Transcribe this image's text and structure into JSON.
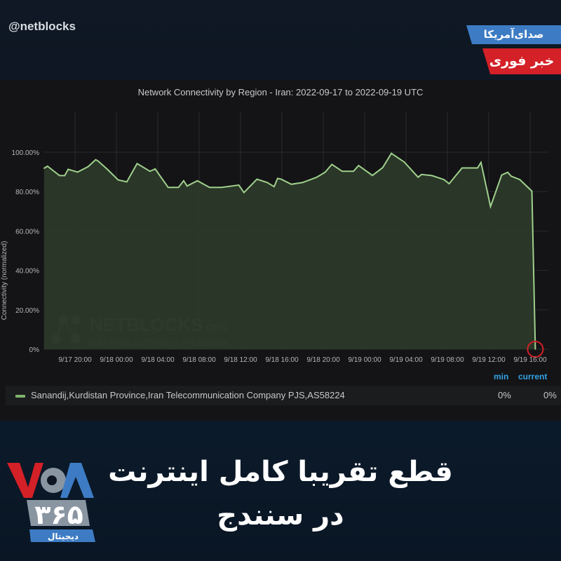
{
  "header": {
    "handle": "@netblocks",
    "badge_voa": "صدای‌آمریکا",
    "badge_breaking": "خبر فوری"
  },
  "headline": {
    "line1": "قطع تقریبا کامل اینترنت",
    "line2": "در سنندج"
  },
  "logo": {
    "text": "VOA ۳۶۵ دیجیتال"
  },
  "watermark": {
    "text": "NETBLOCKS.ORG MAPPING INTERNET FREEDOM"
  },
  "legend": {
    "min_label": "min",
    "current_label": "current",
    "series_name": "Sanandij,Kurdistan Province,Iran Telecommunication Company PJS,AS58224",
    "min_value": "0%",
    "current_value": "0%"
  },
  "colors": {
    "series": "#7eb26d",
    "fill": "#2c3a2a",
    "marker": "#d42027",
    "legend_header": "#33a2e5"
  },
  "chart_data": {
    "type": "area",
    "title": "Network Connectivity by Region - Iran: 2022-09-17 to 2022-09-19 UTC",
    "ylabel": "Connectivity (normalized)",
    "xlabel": "",
    "ylim": [
      0,
      100
    ],
    "yticks": [
      "0%",
      "20.00%",
      "40.00%",
      "60.00%",
      "80.00%",
      "100.00%"
    ],
    "xticks": [
      "9/17 20:00",
      "9/18 00:00",
      "9/18 04:00",
      "9/18 08:00",
      "9/18 12:00",
      "9/18 16:00",
      "9/18 20:00",
      "9/19 00:00",
      "9/19 04:00",
      "9/19 08:00",
      "9/19 12:00",
      "9/19 16:00"
    ],
    "grid": true,
    "legend_placement": "bottom",
    "series": [
      {
        "name": "Sanandij,Kurdistan Province,Iran Telecommunication Company PJS,AS58224",
        "points": [
          [
            "2022-09-17 17:00",
            91.8
          ],
          [
            "2022-09-17 17:20",
            92.9
          ],
          [
            "2022-09-17 18:30",
            88.1
          ],
          [
            "2022-09-17 19:00",
            88.1
          ],
          [
            "2022-09-17 19:20",
            91.3
          ],
          [
            "2022-09-17 20:15",
            89.9
          ],
          [
            "2022-09-17 21:15",
            92.6
          ],
          [
            "2022-09-17 22:00",
            96.2
          ],
          [
            "2022-09-17 22:15",
            95.4
          ],
          [
            "2022-09-17 23:10",
            91.1
          ],
          [
            "2022-09-18 00:10",
            85.9
          ],
          [
            "2022-09-18 01:00",
            84.9
          ],
          [
            "2022-09-18 02:00",
            94.2
          ],
          [
            "2022-09-18 03:15",
            90.3
          ],
          [
            "2022-09-18 03:45",
            91.5
          ],
          [
            "2022-09-18 05:00",
            82.1
          ],
          [
            "2022-09-18 06:00",
            82.1
          ],
          [
            "2022-09-18 06:30",
            85.5
          ],
          [
            "2022-09-18 06:50",
            82.8
          ],
          [
            "2022-09-18 07:50",
            85.5
          ],
          [
            "2022-09-18 09:00",
            82.1
          ],
          [
            "2022-09-18 10:10",
            82.1
          ],
          [
            "2022-09-18 11:50",
            83.3
          ],
          [
            "2022-09-18 12:20",
            79.5
          ],
          [
            "2022-09-18 13:35",
            86.3
          ],
          [
            "2022-09-18 14:35",
            84.6
          ],
          [
            "2022-09-18 15:15",
            82.5
          ],
          [
            "2022-09-18 15:35",
            86.7
          ],
          [
            "2022-09-18 15:55",
            86.3
          ],
          [
            "2022-09-18 16:55",
            83.7
          ],
          [
            "2022-09-18 18:00",
            84.6
          ],
          [
            "2022-09-18 19:20",
            87.2
          ],
          [
            "2022-09-18 20:10",
            89.8
          ],
          [
            "2022-09-18 20:50",
            93.8
          ],
          [
            "2022-09-18 21:50",
            90.3
          ],
          [
            "2022-09-18 22:55",
            90.3
          ],
          [
            "2022-09-18 23:25",
            93.2
          ],
          [
            "2022-09-19 00:45",
            88.2
          ],
          [
            "2022-09-19 01:45",
            92.2
          ],
          [
            "2022-09-19 02:35",
            99.4
          ],
          [
            "2022-09-19 03:50",
            95.0
          ],
          [
            "2022-09-19 05:10",
            87.3
          ],
          [
            "2022-09-19 05:30",
            88.7
          ],
          [
            "2022-09-19 06:30",
            88.1
          ],
          [
            "2022-09-19 07:40",
            86.1
          ],
          [
            "2022-09-19 08:10",
            84.0
          ],
          [
            "2022-09-19 09:25",
            92.0
          ],
          [
            "2022-09-19 10:55",
            92.0
          ],
          [
            "2022-09-19 11:15",
            94.8
          ],
          [
            "2022-09-19 12:10",
            72.4
          ],
          [
            "2022-09-19 13:15",
            88.4
          ],
          [
            "2022-09-19 13:50",
            89.8
          ],
          [
            "2022-09-19 14:10",
            87.8
          ],
          [
            "2022-09-19 15:00",
            86.1
          ],
          [
            "2022-09-19 16:10",
            80.2
          ],
          [
            "2022-09-19 16:30",
            0
          ]
        ]
      }
    ]
  }
}
